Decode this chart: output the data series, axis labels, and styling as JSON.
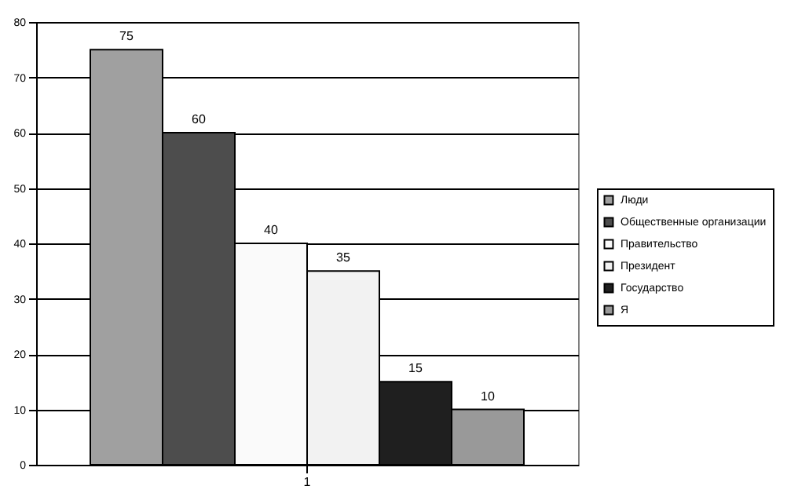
{
  "chart_data": {
    "type": "bar",
    "categories": [
      "1"
    ],
    "series": [
      {
        "name": "Люди",
        "color": "#a0a0a0",
        "values": [
          75
        ]
      },
      {
        "name": "Общественные организации",
        "color": "#4d4d4d",
        "values": [
          60
        ]
      },
      {
        "name": "Правительство",
        "color": "#fafafa",
        "values": [
          40
        ]
      },
      {
        "name": "Президент",
        "color": "#f2f2f2",
        "values": [
          35
        ]
      },
      {
        "name": "Государство",
        "color": "#1f1f1f",
        "values": [
          15
        ]
      },
      {
        "name": "Я",
        "color": "#999999",
        "values": [
          10
        ]
      }
    ],
    "ylim": [
      0,
      80
    ],
    "yticks": [
      0,
      10,
      20,
      30,
      40,
      50,
      60,
      70,
      80
    ],
    "grid": "y",
    "legend": "right",
    "data_labels": true
  }
}
